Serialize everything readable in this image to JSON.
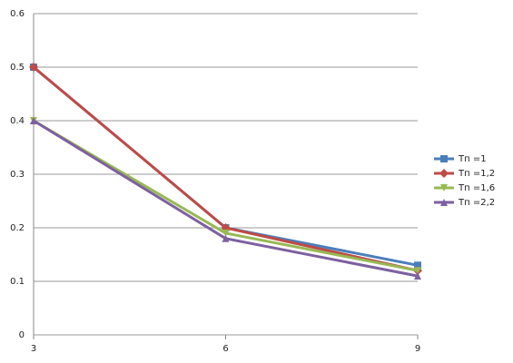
{
  "chart_data": {
    "type": "line",
    "x": [
      3,
      6,
      9
    ],
    "xlim": [
      3,
      9
    ],
    "xticks": [
      3,
      6,
      9
    ],
    "ylim": [
      0,
      0.6
    ],
    "yticks": [
      0,
      0.1,
      0.2,
      0.3,
      0.4,
      0.5,
      0.6
    ],
    "grid": true,
    "legend": "right",
    "series": [
      {
        "name": "Тп =1",
        "color": "#4a7ebb",
        "marker": "square",
        "values": [
          0.5,
          0.2,
          0.13
        ]
      },
      {
        "name": "Тп =1,2",
        "color": "#be4b48",
        "marker": "diamond",
        "values": [
          0.5,
          0.2,
          0.12
        ]
      },
      {
        "name": "Тп =1,6",
        "color": "#98b954",
        "marker": "triangle-down",
        "values": [
          0.4,
          0.19,
          0.12
        ]
      },
      {
        "name": "Тп =2,2",
        "color": "#7d60a0",
        "marker": "triangle",
        "values": [
          0.4,
          0.18,
          0.11
        ]
      }
    ]
  }
}
